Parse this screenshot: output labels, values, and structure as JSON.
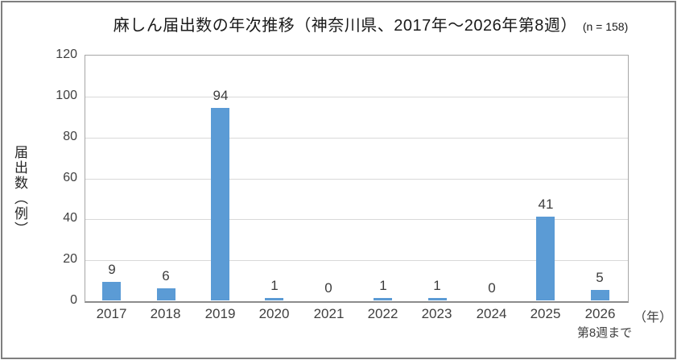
{
  "title": {
    "text": "麻しん届出数の年次推移（神奈川県、2017年～2026年第8週）",
    "n_note": "(n = 158)"
  },
  "y_axis": {
    "title": "届出数（例）",
    "ticks": [
      "0",
      "20",
      "40",
      "60",
      "80",
      "100",
      "120"
    ],
    "max": 120
  },
  "x_axis": {
    "unit_label": "（年）",
    "sub_label_under_last": "第8週まで"
  },
  "chart_data": {
    "type": "bar",
    "title": "麻しん届出数の年次推移（神奈川県、2017年～2026年第8週）(n = 158)",
    "categories": [
      "2017",
      "2018",
      "2019",
      "2020",
      "2021",
      "2022",
      "2023",
      "2024",
      "2025",
      "2026"
    ],
    "values": [
      9,
      6,
      94,
      1,
      0,
      1,
      1,
      0,
      41,
      5
    ],
    "data_labels": [
      "9",
      "6",
      "94",
      "1",
      "0",
      "1",
      "1",
      "0",
      "41",
      "5"
    ],
    "n_total": 158,
    "xlabel": "（年）",
    "ylabel": "届出数（例）",
    "ylim": [
      0,
      120
    ],
    "y_tick_step": 20,
    "grid": true,
    "legend": false,
    "bar_color": "#5B9BD5"
  },
  "colors": {
    "bar": "#5B9BD5",
    "gridline": "#D9D9D9",
    "plot_border": "#A6A6A6",
    "axis_line": "#8C8C8C",
    "frame_border": "#7F7F7F",
    "text": "#3F3F3F"
  }
}
